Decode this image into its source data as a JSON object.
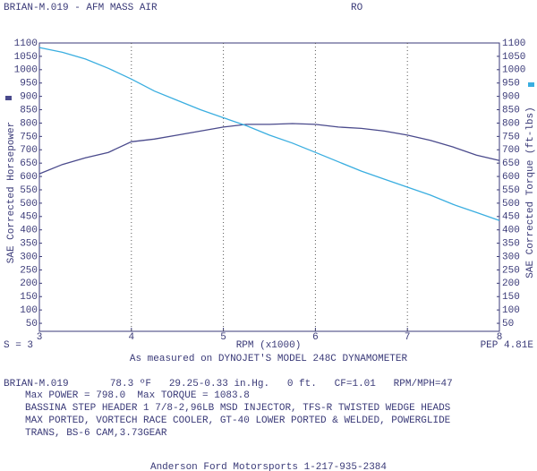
{
  "chart_data": {
    "type": "line",
    "title": "BRIAN-M.019 - AFM MASS AIR",
    "subtitle": "RO",
    "ylabel": "SAE Corrected Horsepower",
    "y2label": "SAE Corrected Torque (ft-lbs)",
    "xlabel": "RPM (x1000)",
    "left_note": "S = 3",
    "right_note": "PEP 4.81E",
    "caption": "As measured on DYNOJET'S MODEL 248C DYNAMOMETER",
    "x": [
      3,
      3.25,
      3.5,
      3.75,
      4,
      4.25,
      4.5,
      4.75,
      5,
      5.25,
      5.5,
      5.75,
      6,
      6.25,
      6.5,
      6.75,
      7,
      7.25,
      7.5,
      7.75,
      8
    ],
    "series": [
      {
        "color": "#4a4a8c",
        "values": [
          610,
          645,
          670,
          690,
          730,
          740,
          755,
          770,
          785,
          795,
          795,
          798,
          795,
          785,
          780,
          770,
          755,
          735,
          710,
          680,
          660
        ]
      },
      {
        "color": "#3aaee0",
        "axis": "y2",
        "values": [
          1083,
          1065,
          1040,
          1005,
          965,
          920,
          885,
          850,
          820,
          790,
          755,
          725,
          690,
          655,
          620,
          590,
          560,
          530,
          495,
          465,
          435
        ]
      }
    ],
    "xlim": [
      3,
      8
    ],
    "xticks": [
      3,
      4,
      5,
      6,
      7,
      8
    ],
    "ylim": [
      20,
      1100
    ],
    "yticks": [
      50,
      100,
      150,
      200,
      250,
      300,
      350,
      400,
      450,
      500,
      550,
      600,
      650,
      700,
      750,
      800,
      850,
      900,
      950,
      1000,
      1050,
      1100
    ],
    "y2lim": [
      20,
      1100
    ],
    "y2ticks": [
      50,
      100,
      150,
      200,
      250,
      300,
      350,
      400,
      450,
      500,
      550,
      600,
      650,
      700,
      750,
      800,
      850,
      900,
      950,
      1000,
      1050,
      1100
    ],
    "grid": true,
    "notes": [
      "BRIAN-M.019       78.3 ºF   29.25-0.33 in.Hg.   0 ft.   CF=1.01   RPM/MPH=47",
      "Max POWER = 798.0  Max TORQUE = 1083.8",
      "BASSINA STEP HEADER 1 7/8-2,96LB MSD INJECTOR, TFS-R TWISTED WEDGE HEADS",
      "MAX PORTED, VORTECH RACE COOLER, GT-40 LOWER PORTED & WELDED, POWERGLIDE",
      "TRANS, BS-6 CAM,3.73GEAR",
      "Anderson Ford Motorsports 1-217-935-2384"
    ]
  }
}
